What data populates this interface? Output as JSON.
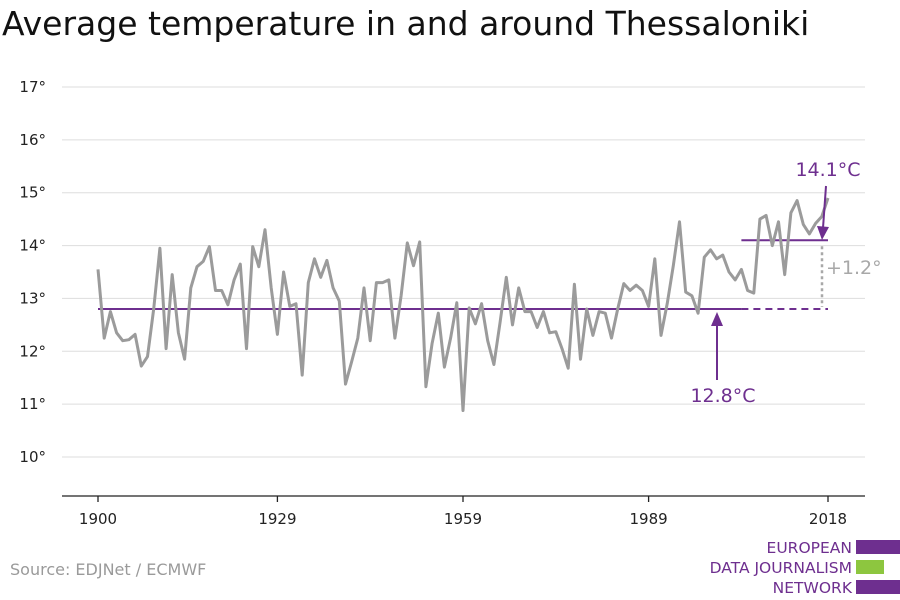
{
  "title": "Average temperature in and around Thessaloniki",
  "source": "Source: EDJNet / ECMWF",
  "logo": {
    "line1": "EUROPEAN",
    "line2": "DATA JOURNALISM",
    "line3": "NETWORK"
  },
  "colors": {
    "series": "#9b9b9b",
    "reference": "#6e2f8f",
    "logo_green": "#8dc63f",
    "logo_purple": "#6e2f8f"
  },
  "chart_data": {
    "type": "line",
    "title": "Average temperature in and around Thessaloniki",
    "xlabel": "",
    "ylabel": "",
    "xlim": [
      1900,
      2018
    ],
    "ylim": [
      10,
      17
    ],
    "x_ticks": [
      1900,
      1929,
      1959,
      1989,
      2018
    ],
    "y_ticks": [
      10,
      11,
      12,
      13,
      14,
      15,
      16,
      17
    ],
    "y_tick_labels": [
      "10°",
      "11°",
      "12°",
      "13°",
      "14°",
      "15°",
      "16°",
      "17°"
    ],
    "grid": "horizontal",
    "series": [
      {
        "x_start": 1900,
        "values": [
          13.55,
          12.25,
          12.75,
          12.35,
          12.2,
          12.22,
          12.32,
          11.72,
          11.9,
          12.8,
          13.95,
          12.05,
          13.45,
          12.35,
          11.85,
          13.2,
          13.6,
          13.7,
          13.98,
          13.15,
          13.15,
          12.88,
          13.35,
          13.65,
          12.05,
          13.98,
          13.6,
          14.3,
          13.2,
          12.32,
          13.5,
          12.85,
          12.9,
          11.55,
          13.3,
          13.75,
          13.4,
          13.72,
          13.2,
          12.95,
          11.38,
          11.8,
          12.25,
          13.2,
          12.2,
          13.3,
          13.3,
          13.35,
          12.25,
          13.05,
          14.05,
          13.62,
          14.07,
          11.33,
          12.15,
          12.72,
          11.7,
          12.25,
          12.92,
          10.88,
          12.82,
          12.52,
          12.9,
          12.2,
          11.75,
          12.55,
          13.4,
          12.5,
          13.2,
          12.75,
          12.75,
          12.45,
          12.75,
          12.35,
          12.37,
          12.05,
          11.68,
          13.27,
          11.85,
          12.8,
          12.3,
          12.75,
          12.72,
          12.25,
          12.8,
          13.28,
          13.15,
          13.25,
          13.15,
          12.85,
          13.75,
          12.3,
          12.9,
          13.62,
          14.45,
          13.12,
          13.05,
          12.72,
          13.78,
          13.92,
          13.75,
          13.82,
          13.5,
          13.35,
          13.55,
          13.15,
          13.1,
          14.5,
          14.57,
          14.0,
          14.45,
          13.45,
          14.62,
          14.85,
          14.4,
          14.22,
          14.42,
          14.55,
          14.9
        ]
      }
    ],
    "reference_lines": [
      {
        "label": "12.8°C",
        "value": 12.8,
        "from": 1900,
        "to": 2018,
        "style": "solid to 2004, dashed after"
      },
      {
        "label": "14.1°C",
        "value": 14.1,
        "from": 2004,
        "to": 2018,
        "style": "solid"
      }
    ],
    "annotations": {
      "low": "12.8°C",
      "high": "14.1°C",
      "diff": "+1.2°"
    }
  }
}
